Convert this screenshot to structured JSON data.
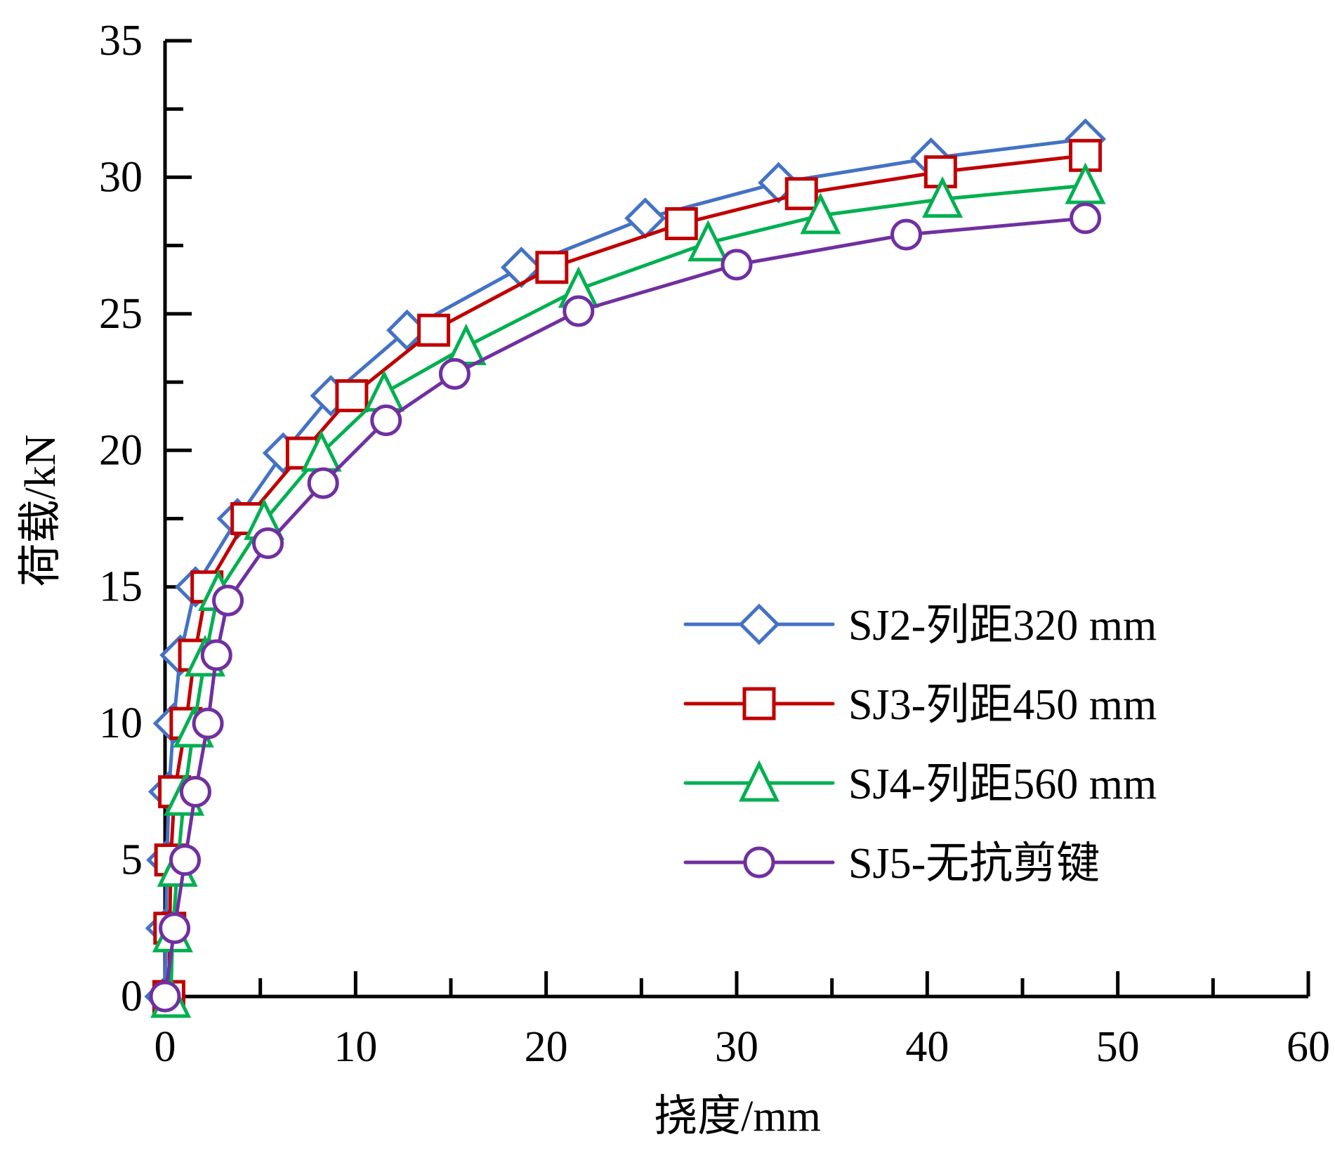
{
  "chart_data": {
    "type": "line",
    "title": "",
    "xlabel": "挠度/mm",
    "ylabel": "荷载/kN",
    "xlim": [
      0,
      60
    ],
    "ylim": [
      0,
      35
    ],
    "x_ticks": [
      "0",
      "10",
      "20",
      "30",
      "40",
      "50",
      "60"
    ],
    "y_ticks": [
      "0",
      "5",
      "10",
      "15",
      "20",
      "25",
      "30",
      "35"
    ],
    "x_tick_values": [
      0,
      10,
      20,
      30,
      40,
      50,
      60
    ],
    "y_tick_values": [
      0,
      5,
      10,
      15,
      20,
      25,
      30,
      35
    ],
    "x_minor_step": 5,
    "y_minor_step": 2.5,
    "grid": false,
    "legend_position": "bottom-right",
    "series": [
      {
        "name": "SJ2-列距320 mm",
        "color": "#4472C4",
        "marker": "diamond",
        "points": [
          [
            0,
            0
          ],
          [
            0.05,
            2.5
          ],
          [
            0.1,
            5
          ],
          [
            0.2,
            7.5
          ],
          [
            0.45,
            10
          ],
          [
            0.8,
            12.5
          ],
          [
            1.6,
            15
          ],
          [
            3.8,
            17.5
          ],
          [
            6.2,
            19.9
          ],
          [
            8.7,
            22.0
          ],
          [
            12.7,
            24.4
          ],
          [
            18.7,
            26.7
          ],
          [
            25.2,
            28.5
          ],
          [
            32.2,
            29.8
          ],
          [
            40.2,
            30.7
          ],
          [
            48.3,
            31.4
          ]
        ]
      },
      {
        "name": "SJ3-列距450 mm",
        "color": "#C00000",
        "marker": "square",
        "points": [
          [
            0.2,
            0
          ],
          [
            0.25,
            2.5
          ],
          [
            0.3,
            5
          ],
          [
            0.5,
            7.5
          ],
          [
            1.1,
            10
          ],
          [
            1.55,
            12.5
          ],
          [
            2.2,
            15
          ],
          [
            4.3,
            17.5
          ],
          [
            7.2,
            19.9
          ],
          [
            9.8,
            22.0
          ],
          [
            14.1,
            24.4
          ],
          [
            20.3,
            26.7
          ],
          [
            27.1,
            28.3
          ],
          [
            33.4,
            29.4
          ],
          [
            40.7,
            30.2
          ],
          [
            48.3,
            30.8
          ]
        ]
      },
      {
        "name": "SJ4-列距560 mm",
        "color": "#00B050",
        "marker": "triangle",
        "points": [
          [
            0.3,
            -0.1
          ],
          [
            0.4,
            2.3
          ],
          [
            0.65,
            4.7
          ],
          [
            1.0,
            7.3
          ],
          [
            1.5,
            9.8
          ],
          [
            2.1,
            12.4
          ],
          [
            2.8,
            14.8
          ],
          [
            5.2,
            17.4
          ],
          [
            8.2,
            19.9
          ],
          [
            11.5,
            22.1
          ],
          [
            15.8,
            23.8
          ],
          [
            21.7,
            25.9
          ],
          [
            28.5,
            27.6
          ],
          [
            34.4,
            28.6
          ],
          [
            40.8,
            29.2
          ],
          [
            48.3,
            29.7
          ]
        ]
      },
      {
        "name": "SJ5-无抗剪键",
        "color": "#7030A0",
        "marker": "circle",
        "points": [
          [
            0,
            0
          ],
          [
            0.5,
            2.5
          ],
          [
            1.05,
            5
          ],
          [
            1.6,
            7.5
          ],
          [
            2.25,
            10
          ],
          [
            2.7,
            12.5
          ],
          [
            3.3,
            14.5
          ],
          [
            5.4,
            16.6
          ],
          [
            8.3,
            18.8
          ],
          [
            11.6,
            21.1
          ],
          [
            15.2,
            22.8
          ],
          [
            21.7,
            25.1
          ],
          [
            30.0,
            26.8
          ],
          [
            38.9,
            27.9
          ],
          [
            48.3,
            28.5
          ]
        ]
      }
    ]
  }
}
